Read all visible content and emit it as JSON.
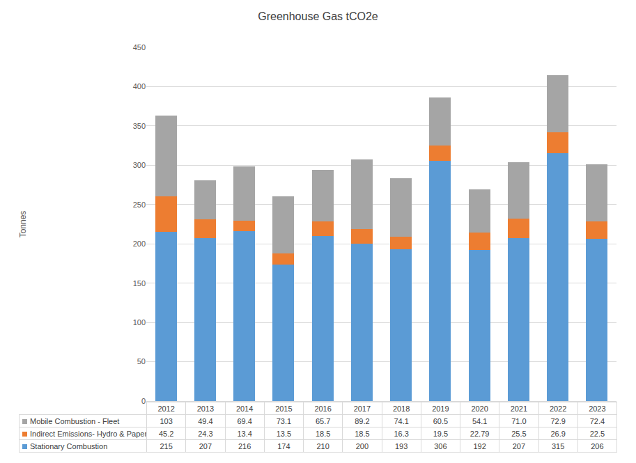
{
  "chart_data": {
    "type": "bar",
    "title": "Greenhouse Gas tCO2e",
    "y_label": "Tonnes",
    "categories": [
      "2012",
      "2013",
      "2014",
      "2015",
      "2016",
      "2017",
      "2018",
      "2019",
      "2020",
      "2021",
      "2022",
      "2023"
    ],
    "series": [
      {
        "name": "Stationary Combustion",
        "color": "#5B9BD5",
        "values": [
          215,
          207,
          216,
          174,
          210,
          200,
          193,
          306,
          192,
          207,
          315,
          206
        ]
      },
      {
        "name": "Indirect Emissions- Hydro & Paper",
        "color": "#ED7D31",
        "values": [
          45.2,
          24.3,
          13.4,
          13.5,
          18.5,
          18.5,
          16.3,
          19.5,
          22.79,
          25.5,
          26.9,
          22.5
        ]
      },
      {
        "name": "Mobile Combustion - Fleet",
        "color": "#A5A5A5",
        "values": [
          103,
          49.4,
          69.4,
          73.1,
          65.7,
          89.2,
          74.1,
          60.5,
          54.1,
          71.0,
          72.9,
          72.4
        ],
        "value_labels": [
          "103",
          "49.4",
          "69.4",
          "73.1",
          "65.7",
          "89.2",
          "74.1",
          "60.5",
          "54.1",
          "71.0",
          "72.9",
          "72.4"
        ]
      }
    ],
    "stacked": true,
    "ylim": [
      0,
      450
    ],
    "yticks": [
      0,
      50,
      100,
      150,
      200,
      250,
      300,
      350,
      400,
      450
    ],
    "grid": true
  }
}
